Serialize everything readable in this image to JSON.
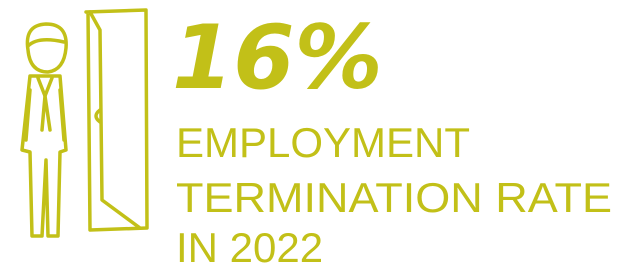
{
  "stat": {
    "value": "16%",
    "label_lines": [
      "EMPLOYMENT",
      "TERMINATION RATE",
      "IN 2022"
    ]
  }
}
